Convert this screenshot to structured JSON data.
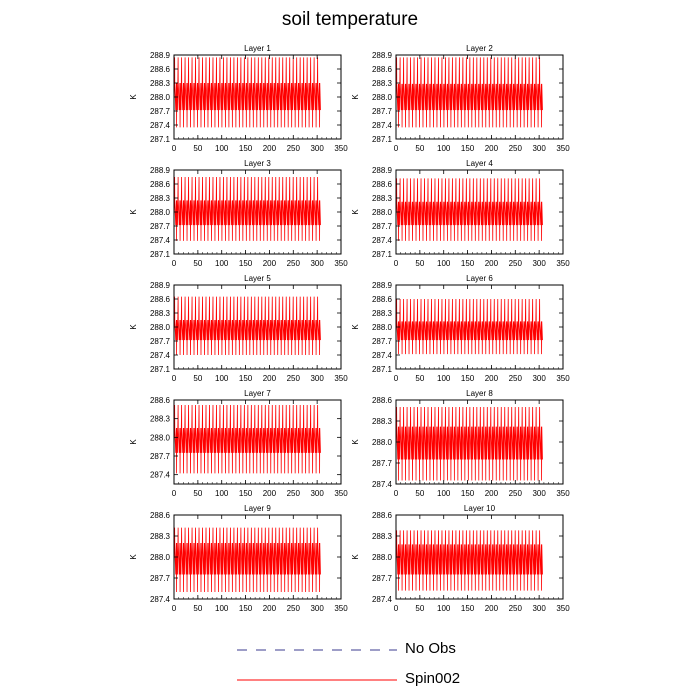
{
  "title": "soil temperature",
  "legend": {
    "items": [
      {
        "label": "No Obs",
        "color": "#3b3b8f",
        "dash": true
      },
      {
        "label": "Spin002",
        "color": "#ff0000",
        "dash": false
      }
    ]
  },
  "chart_data": [
    {
      "type": "line",
      "title": "Layer 1",
      "ylabel": "K",
      "xlabel": "",
      "xlim": [
        0,
        350
      ],
      "xticks": [
        0,
        50,
        100,
        150,
        200,
        250,
        300,
        350
      ],
      "ylim": [
        287.1,
        288.9
      ],
      "yticks": [
        287.1,
        287.4,
        287.7,
        288.0,
        288.3,
        288.6,
        288.9
      ],
      "series": [
        {
          "name": "Spin002",
          "color": "#ff0000",
          "x_range": [
            0,
            307
          ],
          "cycles": 42,
          "peak_high": 288.85,
          "peak_low": 287.35,
          "band_high": 288.3,
          "band_low": 287.72
        }
      ]
    },
    {
      "type": "line",
      "title": "Layer 2",
      "ylabel": "K",
      "xlabel": "",
      "xlim": [
        0,
        350
      ],
      "xticks": [
        0,
        50,
        100,
        150,
        200,
        250,
        300,
        350
      ],
      "ylim": [
        287.1,
        288.9
      ],
      "yticks": [
        287.1,
        287.4,
        287.7,
        288.0,
        288.3,
        288.6,
        288.9
      ],
      "series": [
        {
          "name": "Spin002",
          "color": "#ff0000",
          "x_range": [
            0,
            307
          ],
          "cycles": 42,
          "peak_high": 288.85,
          "peak_low": 287.35,
          "band_high": 288.28,
          "band_low": 287.72
        }
      ]
    },
    {
      "type": "line",
      "title": "Layer 3",
      "ylabel": "K",
      "xlabel": "",
      "xlim": [
        0,
        350
      ],
      "xticks": [
        0,
        50,
        100,
        150,
        200,
        250,
        300,
        350
      ],
      "ylim": [
        287.1,
        288.9
      ],
      "yticks": [
        287.1,
        287.4,
        287.7,
        288.0,
        288.3,
        288.6,
        288.9
      ],
      "series": [
        {
          "name": "Spin002",
          "color": "#ff0000",
          "x_range": [
            0,
            307
          ],
          "cycles": 42,
          "peak_high": 288.75,
          "peak_low": 287.38,
          "band_high": 288.25,
          "band_low": 287.72
        }
      ]
    },
    {
      "type": "line",
      "title": "Layer 4",
      "ylabel": "K",
      "xlabel": "",
      "xlim": [
        0,
        350
      ],
      "xticks": [
        0,
        50,
        100,
        150,
        200,
        250,
        300,
        350
      ],
      "ylim": [
        287.1,
        288.9
      ],
      "yticks": [
        287.1,
        287.4,
        287.7,
        288.0,
        288.3,
        288.6,
        288.9
      ],
      "series": [
        {
          "name": "Spin002",
          "color": "#ff0000",
          "x_range": [
            0,
            307
          ],
          "cycles": 42,
          "peak_high": 288.72,
          "peak_low": 287.38,
          "band_high": 288.22,
          "band_low": 287.72
        }
      ]
    },
    {
      "type": "line",
      "title": "Layer 5",
      "ylabel": "K",
      "xlabel": "",
      "xlim": [
        0,
        350
      ],
      "xticks": [
        0,
        50,
        100,
        150,
        200,
        250,
        300,
        350
      ],
      "ylim": [
        287.1,
        288.9
      ],
      "yticks": [
        287.1,
        287.4,
        287.7,
        288.0,
        288.3,
        288.6,
        288.9
      ],
      "series": [
        {
          "name": "Spin002",
          "color": "#ff0000",
          "x_range": [
            0,
            307
          ],
          "cycles": 42,
          "peak_high": 288.65,
          "peak_low": 287.4,
          "band_high": 288.15,
          "band_low": 287.72
        }
      ]
    },
    {
      "type": "line",
      "title": "Layer 6",
      "ylabel": "K",
      "xlabel": "",
      "xlim": [
        0,
        350
      ],
      "xticks": [
        0,
        50,
        100,
        150,
        200,
        250,
        300,
        350
      ],
      "ylim": [
        287.1,
        288.9
      ],
      "yticks": [
        287.1,
        287.4,
        287.7,
        288.0,
        288.3,
        288.6,
        288.9
      ],
      "series": [
        {
          "name": "Spin002",
          "color": "#ff0000",
          "x_range": [
            0,
            307
          ],
          "cycles": 42,
          "peak_high": 288.6,
          "peak_low": 287.42,
          "band_high": 288.12,
          "band_low": 287.72
        }
      ]
    },
    {
      "type": "line",
      "title": "Layer 7",
      "ylabel": "K",
      "xlabel": "",
      "xlim": [
        0,
        350
      ],
      "xticks": [
        0,
        50,
        100,
        150,
        200,
        250,
        300,
        350
      ],
      "ylim": [
        287.25,
        288.6
      ],
      "yticks": [
        287.4,
        287.7,
        288.0,
        288.3,
        288.6
      ],
      "series": [
        {
          "name": "Spin002",
          "color": "#ff0000",
          "x_range": [
            0,
            307
          ],
          "cycles": 42,
          "peak_high": 288.52,
          "peak_low": 287.42,
          "band_high": 288.15,
          "band_low": 287.75
        }
      ]
    },
    {
      "type": "line",
      "title": "Layer 8",
      "ylabel": "K",
      "xlabel": "",
      "xlim": [
        0,
        350
      ],
      "xticks": [
        0,
        50,
        100,
        150,
        200,
        250,
        300,
        350
      ],
      "ylim": [
        287.4,
        288.6
      ],
      "yticks": [
        287.4,
        287.7,
        288.0,
        288.3,
        288.6
      ],
      "series": [
        {
          "name": "Spin002",
          "color": "#ff0000",
          "x_range": [
            0,
            307
          ],
          "cycles": 42,
          "peak_high": 288.5,
          "peak_low": 287.45,
          "band_high": 288.22,
          "band_low": 287.75
        }
      ]
    },
    {
      "type": "line",
      "title": "Layer 9",
      "ylabel": "K",
      "xlabel": "",
      "xlim": [
        0,
        350
      ],
      "xticks": [
        0,
        50,
        100,
        150,
        200,
        250,
        300,
        350
      ],
      "ylim": [
        287.4,
        288.6
      ],
      "yticks": [
        287.4,
        287.7,
        288.0,
        288.3,
        288.6
      ],
      "series": [
        {
          "name": "Spin002",
          "color": "#ff0000",
          "x_range": [
            0,
            307
          ],
          "cycles": 42,
          "peak_high": 288.42,
          "peak_low": 287.5,
          "band_high": 288.2,
          "band_low": 287.75
        }
      ]
    },
    {
      "type": "line",
      "title": "Layer 10",
      "ylabel": "K",
      "xlabel": "",
      "xlim": [
        0,
        350
      ],
      "xticks": [
        0,
        50,
        100,
        150,
        200,
        250,
        300,
        350
      ],
      "ylim": [
        287.4,
        288.6
      ],
      "yticks": [
        287.4,
        287.7,
        288.0,
        288.3,
        288.6
      ],
      "series": [
        {
          "name": "Spin002",
          "color": "#ff0000",
          "x_range": [
            0,
            307
          ],
          "cycles": 42,
          "peak_high": 288.38,
          "peak_low": 287.52,
          "band_high": 288.18,
          "band_low": 287.75
        }
      ]
    }
  ]
}
